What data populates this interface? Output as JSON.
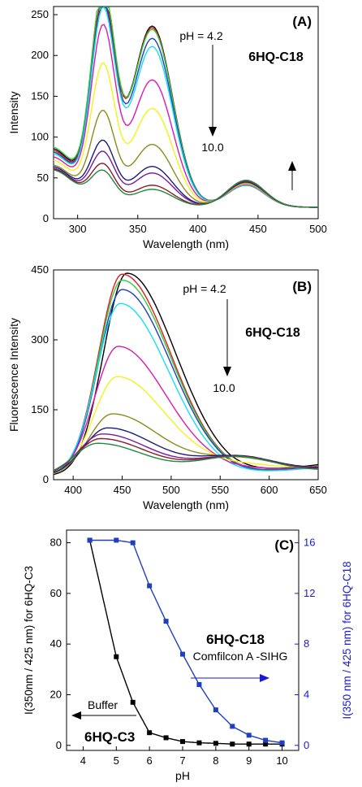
{
  "colors": {
    "black": "#000000",
    "red": "#e41a1c",
    "green": "#2ecc40",
    "blue": "#1f3fbf",
    "cyan": "#16dfef",
    "magenta": "#d81bb0",
    "yellow": "#f3f31a",
    "olive": "#8c8c1e",
    "navy": "#1c1c7a",
    "purple": "#7a1aa0",
    "maroon": "#8a1c2c",
    "darkgreen": "#1e8a3a",
    "axis_blue": "#1a1ad0"
  },
  "chart_data": [
    {
      "panel": "(A)",
      "type": "line",
      "compound_label": "6HQ-C18",
      "xlabel": "Wavelength (nm)",
      "ylabel": "Intensity",
      "xlim": [
        280,
        500
      ],
      "ylim": [
        0,
        260
      ],
      "xticks": [
        "300",
        "350",
        "400",
        "450",
        "500"
      ],
      "yticks": [
        "0",
        "50",
        "100",
        "150",
        "200",
        "250"
      ],
      "annotations": {
        "ph_start": "pH = 4.2",
        "ph_end": "10.0"
      },
      "series": [
        {
          "color": "black",
          "peak320": 240,
          "peak360": 222,
          "base280": 72,
          "peak440": 28
        },
        {
          "color": "red",
          "peak320": 238,
          "peak360": 220,
          "base280": 70,
          "peak440": 27
        },
        {
          "color": "green",
          "peak320": 253,
          "peak360": 218,
          "base280": 74,
          "peak440": 27
        },
        {
          "color": "blue",
          "peak320": 233,
          "peak360": 207,
          "base280": 68,
          "peak440": 27
        },
        {
          "color": "cyan",
          "peak320": 229,
          "peak360": 197,
          "base280": 66,
          "peak440": 27
        },
        {
          "color": "magenta",
          "peak320": 210,
          "peak360": 156,
          "base280": 62,
          "peak440": 28
        },
        {
          "color": "yellow",
          "peak320": 165,
          "peak360": 121,
          "base280": 58,
          "peak440": 29
        },
        {
          "color": "olive",
          "peak320": 110,
          "peak360": 77,
          "base280": 52,
          "peak440": 30
        },
        {
          "color": "navy",
          "peak320": 75,
          "peak360": 50,
          "base280": 50,
          "peak440": 31
        },
        {
          "color": "purple",
          "peak320": 62,
          "peak360": 42,
          "base280": 48,
          "peak440": 32
        },
        {
          "color": "maroon",
          "peak320": 48,
          "peak360": 27,
          "base280": 47,
          "peak440": 33
        },
        {
          "color": "darkgreen",
          "peak320": 40,
          "peak360": 22,
          "base280": 46,
          "peak440": 33
        }
      ]
    },
    {
      "panel": "(B)",
      "type": "line",
      "compound_label": "6HQ-C18",
      "xlabel": "Wavelength (nm)",
      "ylabel": "Fluorescence Intensity",
      "xlim": [
        380,
        650
      ],
      "ylim": [
        0,
        450
      ],
      "xticks": [
        "400",
        "450",
        "500",
        "550",
        "600",
        "650"
      ],
      "yticks": [
        "0",
        "150",
        "300",
        "450"
      ],
      "annotations": {
        "ph_start": "pH = 4.2",
        "ph_end": "10.0"
      },
      "series": [
        {
          "color": "black",
          "peak": 435,
          "center": 455,
          "shoulder": 0,
          "end650": 40
        },
        {
          "color": "red",
          "peak": 433,
          "center": 450,
          "shoulder": 0,
          "end650": 35
        },
        {
          "color": "green",
          "peak": 420,
          "center": 450,
          "shoulder": 0,
          "end650": 33
        },
        {
          "color": "blue",
          "peak": 400,
          "center": 450,
          "shoulder": 0,
          "end650": 32
        },
        {
          "color": "cyan",
          "peak": 370,
          "center": 448,
          "shoulder": 0,
          "end650": 30
        },
        {
          "color": "magenta",
          "peak": 278,
          "center": 446,
          "shoulder": 10,
          "end650": 30
        },
        {
          "color": "yellow",
          "peak": 213,
          "center": 445,
          "shoulder": 20,
          "end650": 30
        },
        {
          "color": "olive",
          "peak": 133,
          "center": 440,
          "shoulder": 35,
          "end650": 28
        },
        {
          "color": "navy",
          "peak": 103,
          "center": 435,
          "shoulder": 40,
          "end650": 25
        },
        {
          "color": "purple",
          "peak": 90,
          "center": 430,
          "shoulder": 40,
          "end650": 22
        },
        {
          "color": "maroon",
          "peak": 80,
          "center": 428,
          "shoulder": 40,
          "end650": 20
        },
        {
          "color": "darkgreen",
          "peak": 70,
          "center": 425,
          "shoulder": 40,
          "end650": 18
        }
      ]
    },
    {
      "panel": "(C)",
      "type": "scatter",
      "xlabel": "pH",
      "ylabel_left": "I(350nm / 425 nm) for 6HQ-C3",
      "ylabel_right": "I(350 nm / 425 nm) for 6HQ-C18",
      "xlim": [
        3.5,
        10.5
      ],
      "ylim_left": [
        -2,
        85
      ],
      "ylim_right": [
        -0.4,
        17
      ],
      "xticks": [
        "4",
        "5",
        "6",
        "7",
        "8",
        "9",
        "10"
      ],
      "yticks_left": [
        "0",
        "20",
        "40",
        "60",
        "80"
      ],
      "yticks_right": [
        "0",
        "4",
        "8",
        "12",
        "16"
      ],
      "labels": {
        "c18_title": "6HQ-C18",
        "c18_sub": "Comfilcon A -SIHG",
        "buffer": "Buffer",
        "c3_title": "6HQ-C3"
      },
      "series": [
        {
          "name": "6HQ-C3",
          "color": "black",
          "axis": "left",
          "x": [
            4.2,
            5.0,
            5.5,
            6.0,
            6.5,
            7.0,
            7.5,
            8.0,
            8.5,
            9.0,
            9.5,
            10.0
          ],
          "y": [
            81,
            35,
            17,
            5,
            3,
            1.5,
            1,
            0.8,
            0.5,
            0.5,
            0.5,
            0.5
          ]
        },
        {
          "name": "6HQ-C18",
          "color": "blue",
          "axis": "right",
          "x": [
            4.2,
            5.0,
            5.5,
            6.0,
            6.5,
            7.0,
            7.5,
            8.0,
            8.5,
            9.0,
            9.5,
            10.0
          ],
          "y": [
            16.2,
            16.2,
            16.0,
            12.6,
            9.8,
            7.2,
            4.8,
            2.8,
            1.5,
            0.8,
            0.4,
            0.2
          ]
        }
      ]
    }
  ]
}
